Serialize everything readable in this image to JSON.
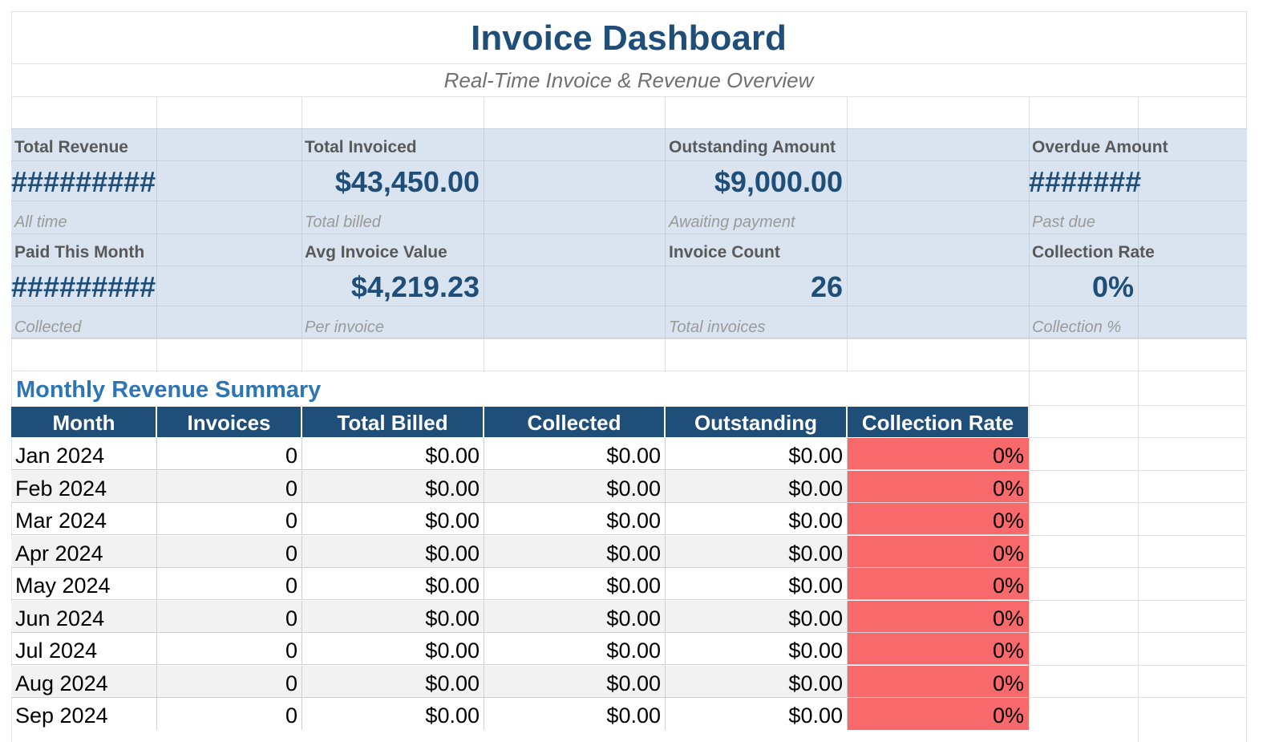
{
  "dashboard": {
    "title": "Invoice Dashboard",
    "subtitle": "Real-Time Invoice & Revenue Overview"
  },
  "kpis": [
    {
      "label": "Total Revenue",
      "value": "#########",
      "note": "All time"
    },
    {
      "label": "Total Invoiced",
      "value": "$43,450.00",
      "note": "Total billed"
    },
    {
      "label": "Outstanding Amount",
      "value": "$9,000.00",
      "note": "Awaiting payment"
    },
    {
      "label": "Overdue Amount",
      "value": "#######",
      "note": "Past due"
    },
    {
      "label": "Paid This Month",
      "value": "#########",
      "note": "Collected"
    },
    {
      "label": "Avg Invoice Value",
      "value": "$4,219.23",
      "note": "Per invoice"
    },
    {
      "label": "Invoice Count",
      "value": "26",
      "note": "Total invoices"
    },
    {
      "label": "Collection Rate",
      "value": "0%",
      "note": "Collection %"
    }
  ],
  "monthly": {
    "title": "Monthly Revenue Summary",
    "headers": [
      "Month",
      "Invoices",
      "Total Billed",
      "Collected",
      "Outstanding",
      "Collection Rate"
    ],
    "rows": [
      [
        "Jan 2024",
        "0",
        "$0.00",
        "$0.00",
        "$0.00",
        "0%"
      ],
      [
        "Feb 2024",
        "0",
        "$0.00",
        "$0.00",
        "$0.00",
        "0%"
      ],
      [
        "Mar 2024",
        "0",
        "$0.00",
        "$0.00",
        "$0.00",
        "0%"
      ],
      [
        "Apr 2024",
        "0",
        "$0.00",
        "$0.00",
        "$0.00",
        "0%"
      ],
      [
        "May 2024",
        "0",
        "$0.00",
        "$0.00",
        "$0.00",
        "0%"
      ],
      [
        "Jun 2024",
        "0",
        "$0.00",
        "$0.00",
        "$0.00",
        "0%"
      ],
      [
        "Jul 2024",
        "0",
        "$0.00",
        "$0.00",
        "$0.00",
        "0%"
      ],
      [
        "Aug 2024",
        "0",
        "$0.00",
        "$0.00",
        "$0.00",
        "0%"
      ],
      [
        "Sep 2024",
        "0",
        "$0.00",
        "$0.00",
        "$0.00",
        "0%"
      ]
    ],
    "colors": {
      "header_bg": "#1f4e79",
      "header_text": "#ffffff",
      "alt_row": "#f2f2f2",
      "low_rate_fill": "#f8696b"
    }
  },
  "colors": {
    "title": "#1f4e79",
    "kpi_band": "#d9e4f0",
    "section_title": "#2e75b6"
  }
}
